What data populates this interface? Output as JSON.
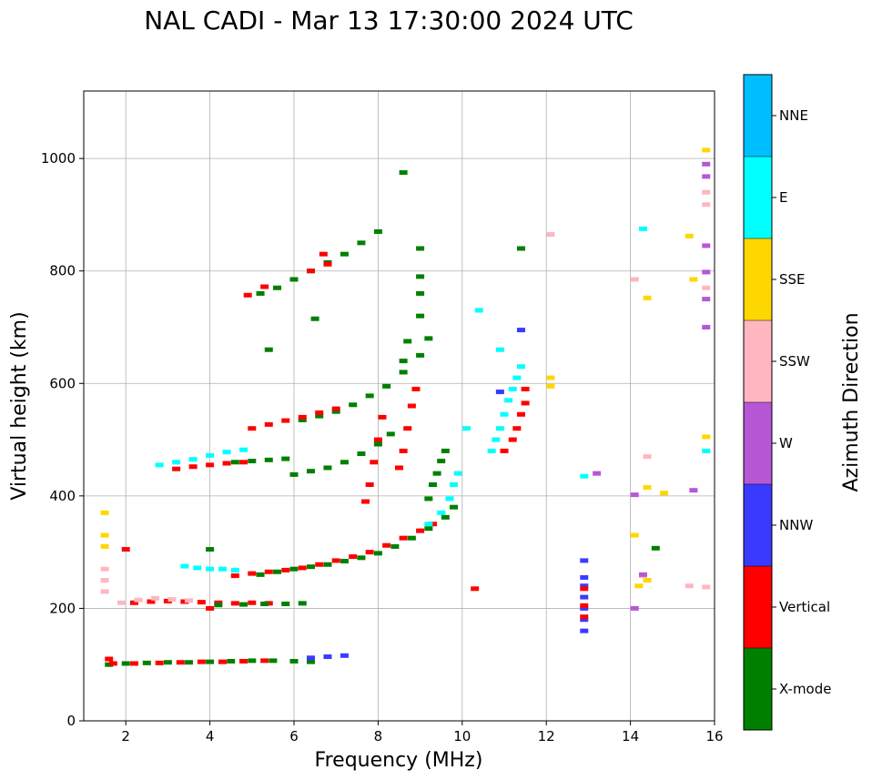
{
  "chart_data": {
    "type": "scatter",
    "title": "NAL CADI - Mar 13 17:30:00 2024 UTC",
    "xlabel": "Frequency (MHz)",
    "ylabel": "Virtual height (km)",
    "xlim": [
      1,
      16
    ],
    "ylim": [
      0,
      1120
    ],
    "xticks": [
      2,
      4,
      6,
      8,
      10,
      12,
      14,
      16
    ],
    "yticks": [
      0,
      200,
      400,
      600,
      800,
      1000
    ],
    "grid": true,
    "colorbar": {
      "label": "Azimuth Direction",
      "categories": [
        {
          "name": "X-mode",
          "color": "#008000"
        },
        {
          "name": "Vertical",
          "color": "#ff0000"
        },
        {
          "name": "NNW",
          "color": "#3a3aff"
        },
        {
          "name": "W",
          "color": "#b657d6"
        },
        {
          "name": "SSW",
          "color": "#ffb6c1"
        },
        {
          "name": "SSE",
          "color": "#ffd700"
        },
        {
          "name": "E",
          "color": "#00ffff"
        },
        {
          "name": "NNE",
          "color": "#00bfff"
        }
      ]
    },
    "traces": [
      {
        "category": "X-mode",
        "points": [
          [
            1.6,
            100
          ],
          [
            2,
            102
          ],
          [
            2.5,
            103
          ],
          [
            3,
            104
          ],
          [
            3.5,
            104
          ],
          [
            4,
            105
          ],
          [
            4.5,
            106
          ],
          [
            5,
            107
          ],
          [
            5.5,
            107
          ],
          [
            6,
            106
          ],
          [
            6.4,
            105
          ]
        ]
      },
      {
        "category": "Vertical",
        "points": [
          [
            1.7,
            102
          ],
          [
            2.2,
            102
          ],
          [
            2.8,
            103
          ],
          [
            3.3,
            104
          ],
          [
            3.8,
            105
          ],
          [
            4.3,
            105
          ],
          [
            4.8,
            106
          ],
          [
            5.3,
            107
          ]
        ]
      },
      {
        "category": "NNW",
        "points": [
          [
            6.4,
            112
          ],
          [
            6.8,
            114
          ],
          [
            7.2,
            116
          ]
        ]
      },
      {
        "category": "Vertical",
        "points": [
          [
            2.2,
            210
          ],
          [
            2.6,
            212
          ],
          [
            3,
            213
          ],
          [
            3.4,
            212
          ],
          [
            3.8,
            211
          ],
          [
            4.2,
            210
          ],
          [
            4.6,
            209
          ],
          [
            5,
            210
          ],
          [
            5.4,
            209
          ]
        ]
      },
      {
        "category": "X-mode",
        "points": [
          [
            4.2,
            206
          ],
          [
            4.8,
            207
          ],
          [
            5.3,
            208
          ],
          [
            5.8,
            208
          ],
          [
            6.2,
            209
          ]
        ]
      },
      {
        "category": "SSW",
        "points": [
          [
            1.9,
            210
          ],
          [
            2.3,
            215
          ],
          [
            2.7,
            218
          ],
          [
            3.1,
            216
          ],
          [
            3.5,
            214
          ]
        ]
      },
      {
        "category": "E",
        "points": [
          [
            3.4,
            275
          ],
          [
            3.7,
            272
          ],
          [
            4.0,
            270
          ],
          [
            4.3,
            270
          ],
          [
            4.6,
            268
          ]
        ]
      },
      {
        "category": "Vertical",
        "points": [
          [
            4.6,
            258
          ],
          [
            5,
            262
          ],
          [
            5.4,
            265
          ],
          [
            5.8,
            268
          ],
          [
            6.2,
            272
          ],
          [
            6.6,
            278
          ],
          [
            7,
            285
          ],
          [
            7.4,
            292
          ],
          [
            7.8,
            300
          ],
          [
            8.2,
            312
          ],
          [
            8.6,
            325
          ],
          [
            9,
            338
          ],
          [
            9.3,
            350
          ]
        ]
      },
      {
        "category": "X-mode",
        "points": [
          [
            5.2,
            260
          ],
          [
            5.6,
            265
          ],
          [
            6,
            270
          ],
          [
            6.4,
            274
          ],
          [
            6.8,
            278
          ],
          [
            7.2,
            284
          ],
          [
            7.6,
            290
          ],
          [
            8,
            298
          ],
          [
            8.4,
            310
          ],
          [
            8.8,
            325
          ],
          [
            9.2,
            342
          ],
          [
            9.6,
            362
          ],
          [
            9.8,
            380
          ]
        ]
      },
      {
        "category": "E",
        "points": [
          [
            9.2,
            350
          ],
          [
            9.5,
            370
          ],
          [
            9.7,
            395
          ],
          [
            9.8,
            420
          ],
          [
            9.9,
            440
          ]
        ]
      },
      {
        "category": "X-mode",
        "points": [
          [
            9.2,
            395
          ],
          [
            9.3,
            420
          ],
          [
            9.4,
            440
          ],
          [
            9.5,
            462
          ],
          [
            9.6,
            480
          ]
        ]
      },
      {
        "category": "X-mode",
        "points": [
          [
            6,
            438
          ],
          [
            6.4,
            444
          ],
          [
            6.8,
            450
          ],
          [
            7.2,
            460
          ],
          [
            7.6,
            475
          ],
          [
            8,
            492
          ],
          [
            8.3,
            510
          ]
        ]
      },
      {
        "category": "Vertical",
        "points": [
          [
            7.7,
            390
          ],
          [
            7.8,
            420
          ],
          [
            7.9,
            460
          ],
          [
            8,
            500
          ],
          [
            8.1,
            540
          ]
        ]
      },
      {
        "category": "Vertical",
        "points": [
          [
            8.5,
            450
          ],
          [
            8.6,
            480
          ],
          [
            8.7,
            520
          ],
          [
            8.8,
            560
          ],
          [
            8.9,
            590
          ]
        ]
      },
      {
        "category": "X-mode",
        "points": [
          [
            6.2,
            535
          ],
          [
            6.6,
            542
          ],
          [
            7,
            550
          ],
          [
            7.4,
            562
          ],
          [
            7.8,
            578
          ],
          [
            8.2,
            595
          ],
          [
            8.6,
            620
          ],
          [
            9,
            650
          ],
          [
            9.2,
            680
          ]
        ]
      },
      {
        "category": "Vertical",
        "points": [
          [
            5,
            520
          ],
          [
            5.4,
            527
          ],
          [
            5.8,
            534
          ],
          [
            6.2,
            540
          ],
          [
            6.6,
            548
          ],
          [
            7,
            555
          ]
        ]
      },
      {
        "category": "E",
        "points": [
          [
            2.8,
            455
          ],
          [
            3.2,
            460
          ],
          [
            3.6,
            465
          ],
          [
            4,
            472
          ],
          [
            4.4,
            478
          ],
          [
            4.8,
            482
          ]
        ]
      },
      {
        "category": "Vertical",
        "points": [
          [
            3.2,
            448
          ],
          [
            3.6,
            452
          ],
          [
            4,
            455
          ],
          [
            4.4,
            458
          ],
          [
            4.8,
            460
          ]
        ]
      },
      {
        "category": "X-mode",
        "points": [
          [
            4.6,
            460
          ],
          [
            5,
            462
          ],
          [
            5.4,
            464
          ],
          [
            5.8,
            466
          ]
        ]
      },
      {
        "category": "E",
        "points": [
          [
            10.7,
            480
          ],
          [
            10.8,
            500
          ],
          [
            10.9,
            520
          ],
          [
            11,
            545
          ],
          [
            11.1,
            570
          ],
          [
            11.2,
            590
          ],
          [
            11.3,
            610
          ],
          [
            11.4,
            630
          ],
          [
            10.9,
            660
          ]
        ]
      },
      {
        "category": "Vertical",
        "points": [
          [
            11,
            480
          ],
          [
            11.2,
            500
          ],
          [
            11.3,
            520
          ],
          [
            11.4,
            545
          ],
          [
            11.5,
            565
          ],
          [
            11.5,
            590
          ]
        ]
      },
      {
        "category": "X-mode",
        "points": [
          [
            5.2,
            760
          ],
          [
            5.6,
            770
          ],
          [
            6,
            785
          ],
          [
            6.4,
            800
          ],
          [
            6.8,
            815
          ],
          [
            7.2,
            830
          ],
          [
            7.6,
            850
          ],
          [
            8,
            870
          ]
        ]
      },
      {
        "category": "Vertical",
        "points": [
          [
            4.9,
            757
          ],
          [
            5.3,
            772
          ],
          [
            6.4,
            800
          ],
          [
            6.7,
            830
          ],
          [
            6.8,
            812
          ]
        ]
      },
      {
        "category": "X-mode",
        "points": [
          [
            9,
            720
          ],
          [
            9,
            760
          ],
          [
            9,
            790
          ],
          [
            8.7,
            675
          ],
          [
            8.6,
            640
          ]
        ]
      },
      {
        "category": "NNW",
        "points": [
          [
            12.9,
            160
          ],
          [
            12.9,
            180
          ],
          [
            12.9,
            200
          ],
          [
            12.9,
            220
          ],
          [
            12.9,
            240
          ],
          [
            12.9,
            255
          ],
          [
            12.9,
            285
          ]
        ]
      },
      {
        "category": "Vertical",
        "points": [
          [
            12.9,
            185
          ],
          [
            12.9,
            205
          ],
          [
            12.9,
            235
          ]
        ]
      },
      {
        "category": "Vertical",
        "points": [
          [
            10.3,
            235
          ],
          [
            1.6,
            110
          ],
          [
            2,
            305
          ],
          [
            4,
            200
          ]
        ]
      },
      {
        "category": "X-mode",
        "points": [
          [
            8.6,
            975
          ],
          [
            9,
            840
          ],
          [
            11.4,
            840
          ],
          [
            6.5,
            715
          ],
          [
            5.4,
            660
          ],
          [
            4,
            305
          ],
          [
            14.6,
            307
          ]
        ]
      },
      {
        "category": "SSE",
        "points": [
          [
            1.5,
            370
          ],
          [
            1.5,
            330
          ],
          [
            1.5,
            310
          ],
          [
            12.1,
            610
          ],
          [
            12.1,
            595
          ],
          [
            14.4,
            752
          ],
          [
            15.4,
            862
          ],
          [
            15.5,
            785
          ],
          [
            15.8,
            1015
          ],
          [
            15.8,
            505
          ],
          [
            14.8,
            405
          ],
          [
            14.4,
            415
          ],
          [
            14.1,
            330
          ],
          [
            14.2,
            240
          ],
          [
            14.4,
            250
          ]
        ]
      },
      {
        "category": "SSW",
        "points": [
          [
            1.5,
            270
          ],
          [
            1.5,
            250
          ],
          [
            1.5,
            230
          ],
          [
            14.1,
            785
          ],
          [
            14.4,
            470
          ],
          [
            15.8,
            770
          ],
          [
            15.8,
            918
          ],
          [
            15.8,
            940
          ],
          [
            15.4,
            240
          ],
          [
            15.8,
            238
          ],
          [
            12.1,
            865
          ],
          [
            14.3,
            258
          ]
        ]
      },
      {
        "category": "W",
        "points": [
          [
            15.8,
            990
          ],
          [
            15.8,
            968
          ],
          [
            15.8,
            845
          ],
          [
            15.8,
            798
          ],
          [
            15.8,
            750
          ],
          [
            15.8,
            700
          ],
          [
            15.5,
            410
          ],
          [
            14.1,
            402
          ],
          [
            13.2,
            440
          ],
          [
            14.1,
            200
          ],
          [
            14.3,
            260
          ]
        ]
      },
      {
        "category": "E",
        "points": [
          [
            14.3,
            875
          ],
          [
            15.8,
            480
          ],
          [
            12.9,
            435
          ],
          [
            10.4,
            730
          ],
          [
            10.1,
            520
          ]
        ]
      },
      {
        "category": "NNW",
        "points": [
          [
            11.4,
            695
          ],
          [
            10.9,
            585
          ]
        ]
      }
    ]
  }
}
